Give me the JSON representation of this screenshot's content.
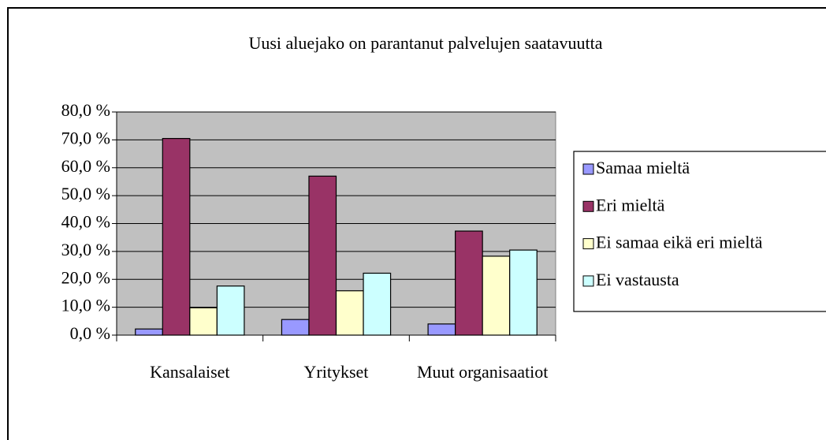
{
  "chart_data": {
    "type": "bar",
    "title": "Uusi aluejako on parantanut palvelujen saatavuutta",
    "categories": [
      "Kansalaiset",
      "Yritykset",
      "Muut organisaatiot"
    ],
    "series": [
      {
        "name": "Samaa mieltä",
        "color": "#9999ff",
        "values": [
          2.2,
          5.6,
          4.0
        ]
      },
      {
        "name": "Eri mieltä",
        "color": "#993366",
        "values": [
          70.5,
          57.0,
          37.3
        ]
      },
      {
        "name": "Ei samaa eikä eri mieltä",
        "color": "#ffffcc",
        "values": [
          9.8,
          15.9,
          28.3
        ]
      },
      {
        "name": "Ei vastausta",
        "color": "#ccffff",
        "values": [
          17.6,
          22.2,
          30.5
        ]
      }
    ],
    "ylim": [
      0,
      80
    ],
    "yticks": [
      {
        "value": 0,
        "label": "0,0 %"
      },
      {
        "value": 10,
        "label": "10,0 %"
      },
      {
        "value": 20,
        "label": "20,0 %"
      },
      {
        "value": 30,
        "label": "30,0 %"
      },
      {
        "value": 40,
        "label": "40,0 %"
      },
      {
        "value": 50,
        "label": "50,0 %"
      },
      {
        "value": 60,
        "label": "60,0 %"
      },
      {
        "value": 70,
        "label": "70,0 %"
      },
      {
        "value": 80,
        "label": "80,0 %"
      }
    ],
    "grid": true,
    "legend": "right",
    "plot_background": "#c0c0c0"
  }
}
